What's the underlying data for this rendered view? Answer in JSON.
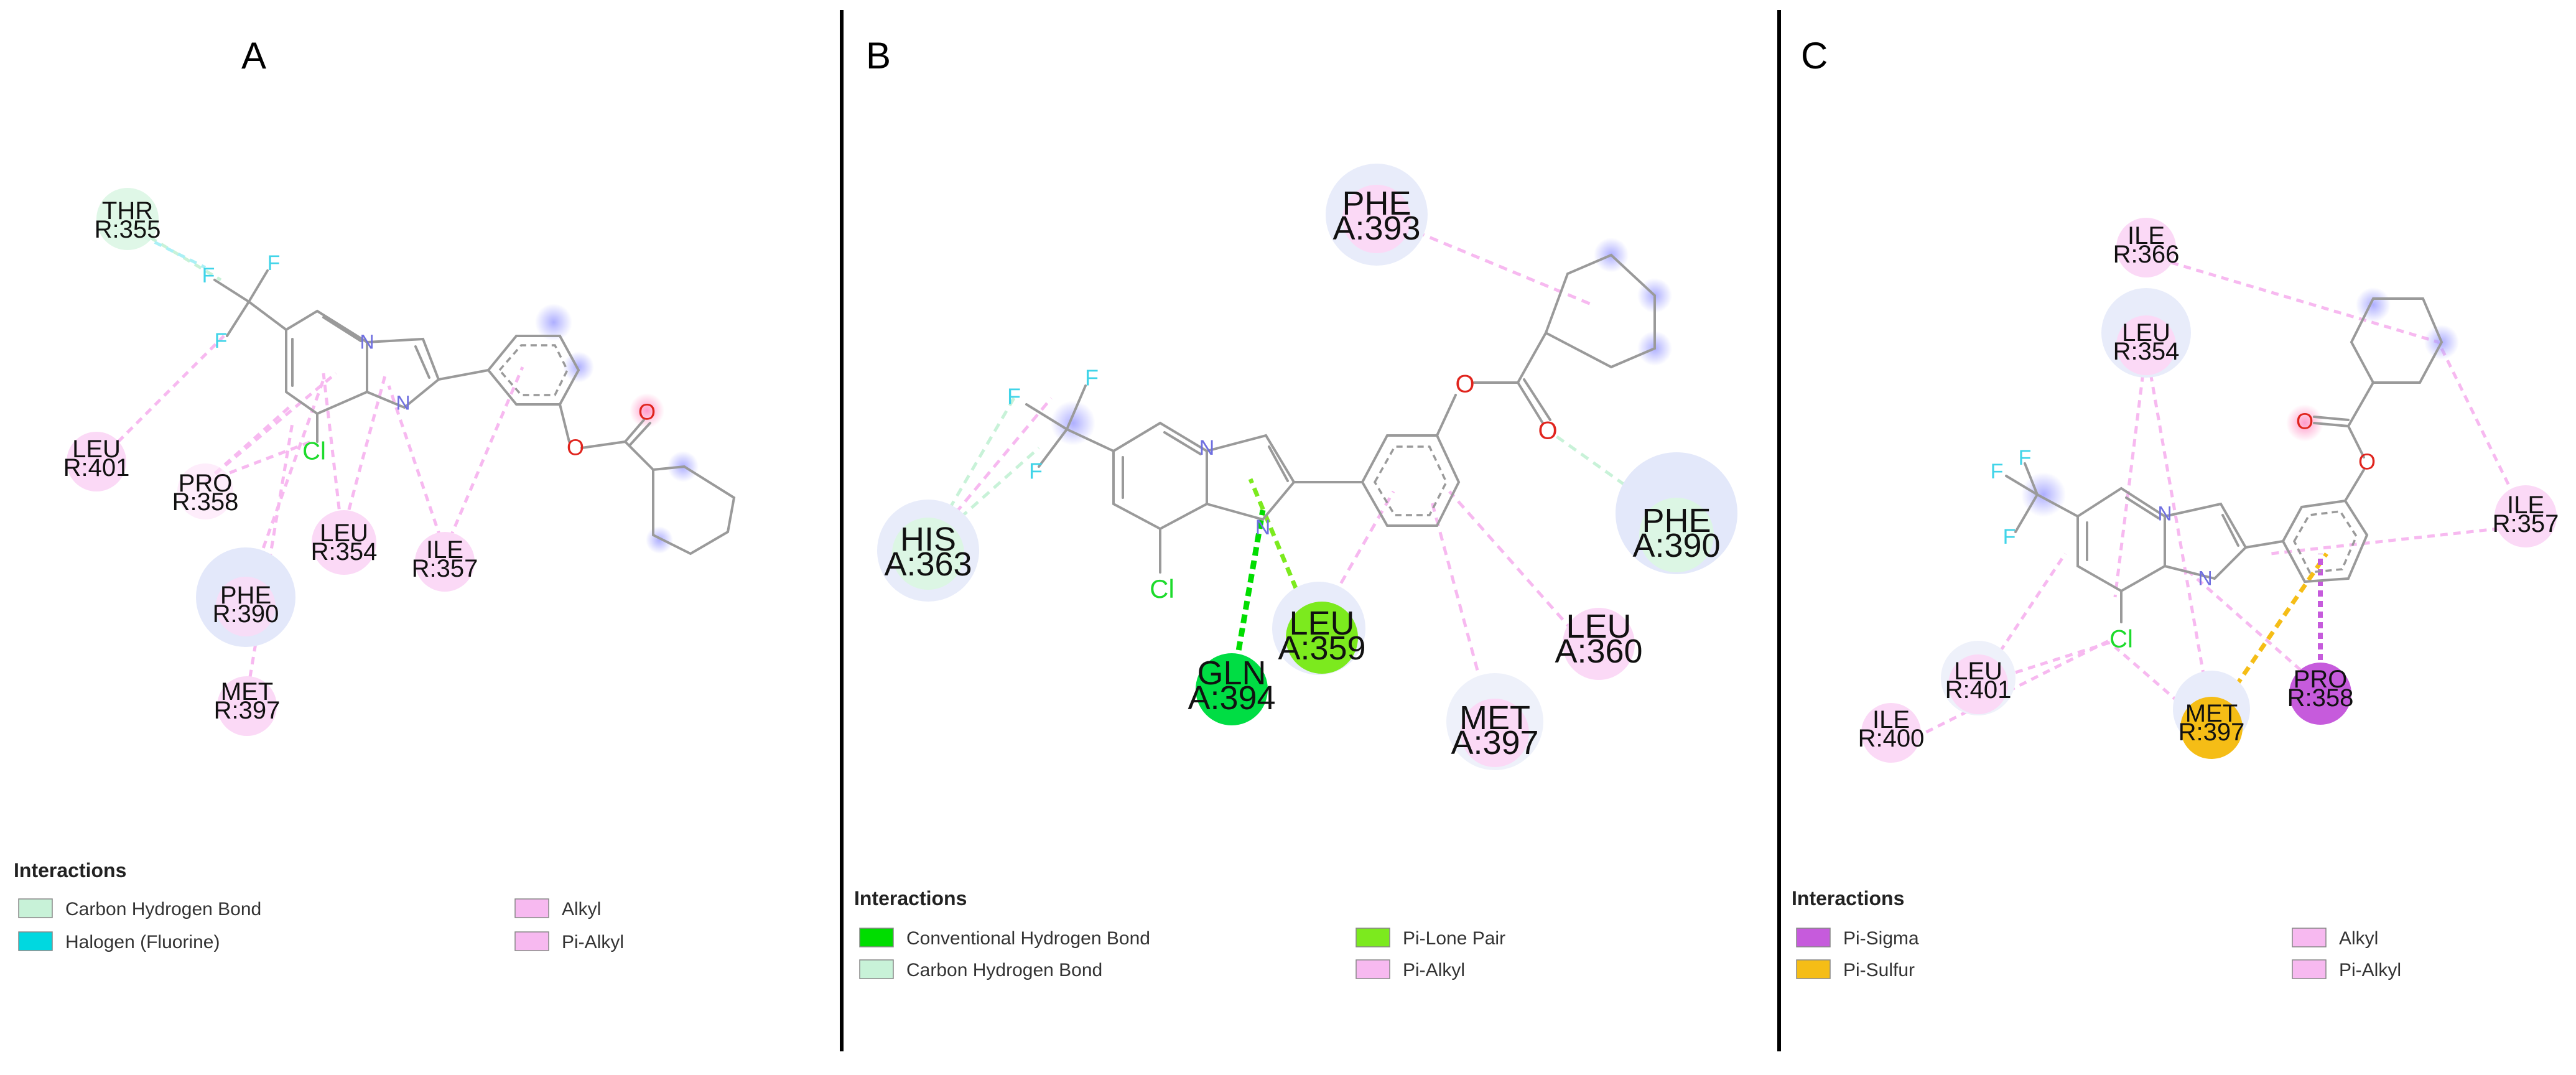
{
  "colors": {
    "conventional_hbond": "#00dd00",
    "carbon_hbond": "#c8f2d8",
    "halogen": "#00d8e0",
    "alkyl": "#f7b9f0",
    "pi_alkyl": "#f7b9f0",
    "pi_lone_pair": "#7cea1e",
    "pi_sigma": "#c65bdc",
    "pi_sulfur": "#f5bd16",
    "bond": "#9a9a9a",
    "nitrogen": "#6f6fe0",
    "oxygen": "#e0241d",
    "chlorine": "#1ddb2c",
    "fluorine": "#40d4e8"
  },
  "panels": [
    {
      "id": "A",
      "title": "A",
      "atoms": {
        "f1": "F",
        "f2": "F",
        "f3": "F",
        "n1": "N",
        "n2": "N",
        "cl": "Cl",
        "o1": "O",
        "o2": "O"
      },
      "residues": [
        {
          "name": "THR",
          "chain": "R:355",
          "type": "carbon_hbond"
        },
        {
          "name": "LEU",
          "chain": "R:401",
          "type": "alkyl"
        },
        {
          "name": "PRO",
          "chain": "R:358",
          "type": "alkyl"
        },
        {
          "name": "LEU",
          "chain": "R:354",
          "type": "alkyl"
        },
        {
          "name": "ILE",
          "chain": "R:357",
          "type": "pi_alkyl"
        },
        {
          "name": "PHE",
          "chain": "R:390",
          "type": "pi_alkyl"
        },
        {
          "name": "MET",
          "chain": "R:397",
          "type": "alkyl"
        }
      ],
      "legend": {
        "heading": "Interactions",
        "items": [
          {
            "label": "Carbon Hydrogen Bond",
            "type": "carbon_hbond"
          },
          {
            "label": "Halogen (Fluorine)",
            "type": "halogen"
          },
          {
            "label": "Alkyl",
            "type": "alkyl"
          },
          {
            "label": "Pi-Alkyl",
            "type": "pi_alkyl"
          }
        ]
      }
    },
    {
      "id": "B",
      "title": "B",
      "atoms": {
        "f1": "F",
        "f2": "F",
        "f3": "F",
        "n1": "N",
        "n2": "N",
        "cl": "Cl",
        "o1": "O",
        "o2": "O"
      },
      "residues": [
        {
          "name": "PHE",
          "chain": "A:393",
          "type": "pi_alkyl"
        },
        {
          "name": "HIS",
          "chain": "A:363",
          "type": "carbon_hbond"
        },
        {
          "name": "PHE",
          "chain": "A:390",
          "type": "carbon_hbond"
        },
        {
          "name": "LEU",
          "chain": "A:359",
          "type": "pi_lone_pair"
        },
        {
          "name": "GLN",
          "chain": "A:394",
          "type": "conventional_hbond"
        },
        {
          "name": "LEU",
          "chain": "A:360",
          "type": "pi_alkyl"
        },
        {
          "name": "MET",
          "chain": "A:397",
          "type": "pi_alkyl"
        }
      ],
      "legend": {
        "heading": "Interactions",
        "items": [
          {
            "label": "Conventional Hydrogen Bond",
            "type": "conventional_hbond"
          },
          {
            "label": "Carbon Hydrogen Bond",
            "type": "carbon_hbond"
          },
          {
            "label": "Pi-Lone Pair",
            "type": "pi_lone_pair"
          },
          {
            "label": "Pi-Alkyl",
            "type": "pi_alkyl"
          }
        ]
      }
    },
    {
      "id": "C",
      "title": "C",
      "atoms": {
        "f1": "F",
        "f2": "F",
        "f3": "F",
        "n1": "N",
        "n2": "N",
        "cl": "Cl",
        "o1": "O",
        "o2": "O"
      },
      "residues": [
        {
          "name": "ILE",
          "chain": "R:366",
          "type": "alkyl"
        },
        {
          "name": "LEU",
          "chain": "R:354",
          "type": "alkyl"
        },
        {
          "name": "ILE",
          "chain": "R:357",
          "type": "pi_alkyl"
        },
        {
          "name": "LEU",
          "chain": "R:401",
          "type": "alkyl"
        },
        {
          "name": "ILE",
          "chain": "R:400",
          "type": "alkyl"
        },
        {
          "name": "MET",
          "chain": "R:397",
          "type": "pi_sulfur"
        },
        {
          "name": "PRO",
          "chain": "R:358",
          "type": "pi_sigma"
        }
      ],
      "legend": {
        "heading": "Interactions",
        "items": [
          {
            "label": "Pi-Sigma",
            "type": "pi_sigma"
          },
          {
            "label": "Pi-Sulfur",
            "type": "pi_sulfur"
          },
          {
            "label": "Alkyl",
            "type": "alkyl"
          },
          {
            "label": "Pi-Alkyl",
            "type": "pi_alkyl"
          }
        ]
      }
    }
  ]
}
